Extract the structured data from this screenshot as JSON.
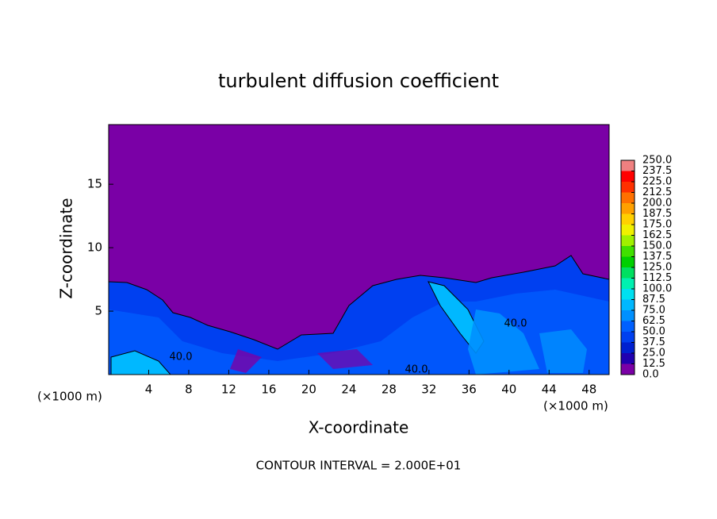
{
  "chart_data": {
    "type": "contour",
    "title": "turbulent diffusion coefficient",
    "x_label": "X-coordinate",
    "y_label": "Z-coordinate",
    "x_unit_labels": [
      "(×1000 m)",
      "(×1000 m)"
    ],
    "footnote": "CONTOUR INTERVAL = 2.000E+01",
    "xlim": [
      0,
      50
    ],
    "xticks": [
      4,
      8,
      12,
      16,
      20,
      24,
      28,
      32,
      36,
      40,
      44,
      48
    ],
    "ylim": [
      0,
      19.7
    ],
    "yticks": [
      5,
      10,
      15
    ],
    "levels": [
      {
        "value": 0,
        "label": "0.0"
      },
      {
        "value": 12.5,
        "label": "12.5"
      },
      {
        "value": 25,
        "label": "25.0"
      },
      {
        "value": 37.5,
        "label": "37.5"
      },
      {
        "value": 50,
        "label": "50.0"
      },
      {
        "value": 62.5,
        "label": "62.5"
      },
      {
        "value": 75,
        "label": "75.0"
      },
      {
        "value": 87.5,
        "label": "87.5"
      },
      {
        "value": 100,
        "label": "100.0"
      },
      {
        "value": 112.5,
        "label": "112.5"
      },
      {
        "value": 125,
        "label": "125.0"
      },
      {
        "value": 137.5,
        "label": "137.5"
      },
      {
        "value": 150,
        "label": "150.0"
      },
      {
        "value": 162.5,
        "label": "162.5"
      },
      {
        "value": 175,
        "label": "175.0"
      },
      {
        "value": 187.5,
        "label": "187.5"
      },
      {
        "value": 200,
        "label": "200.0"
      },
      {
        "value": 212.5,
        "label": "212.5"
      },
      {
        "value": 225,
        "label": "225.0"
      },
      {
        "value": 237.5,
        "label": "237.5"
      },
      {
        "value": 250,
        "label": "250.0"
      }
    ],
    "colors": [
      "#7a00a6",
      "#2000b0",
      "#0020d0",
      "#0040f0",
      "#0060ff",
      "#0090ff",
      "#00b8ff",
      "#00e0f0",
      "#00f0b0",
      "#00e060",
      "#00d000",
      "#40e000",
      "#a0f000",
      "#f0f000",
      "#ffd000",
      "#ffa000",
      "#ff7000",
      "#ff3000",
      "#ff0000",
      "#f08080"
    ],
    "contour_labels": [
      {
        "value": 40,
        "label": "40.0"
      },
      {
        "value": 40,
        "label": "40.0"
      },
      {
        "value": 40,
        "label": "40.0"
      }
    ]
  }
}
